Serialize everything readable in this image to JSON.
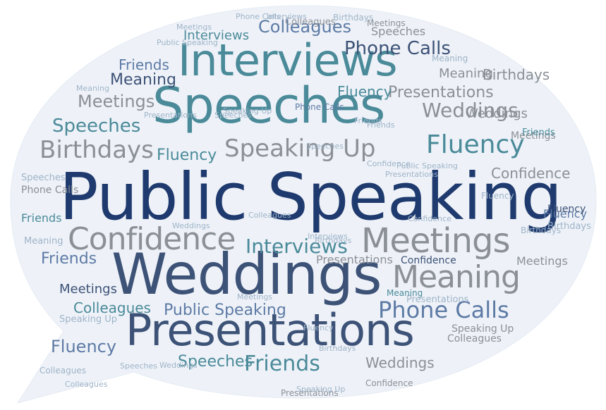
{
  "palette": {
    "navy": "#1f3a6e",
    "slate": "#3d5277",
    "teal": "#4a8a99",
    "steel": "#5d7aa5",
    "gray": "#8b9096",
    "light": "#9eb3c8",
    "bubble": "#eef2f8"
  },
  "words": [
    {
      "text": "Public Speaking",
      "color": "navy"
    },
    {
      "text": "Weddings",
      "color": "slate"
    },
    {
      "text": "Speeches",
      "color": "teal"
    },
    {
      "text": "Interviews",
      "color": "teal"
    },
    {
      "text": "Presentations",
      "color": "slate"
    },
    {
      "text": "Confidence",
      "color": "gray"
    },
    {
      "text": "Meetings",
      "color": "gray"
    },
    {
      "text": "Meaning",
      "color": "gray"
    },
    {
      "text": "Speaking Up",
      "color": "gray"
    },
    {
      "text": "Birthdays",
      "color": "gray"
    },
    {
      "text": "Fluency",
      "color": "teal"
    },
    {
      "text": "Phone Calls",
      "color": "steel"
    },
    {
      "text": "Friends",
      "color": "teal"
    },
    {
      "text": "Weddings",
      "color": "gray"
    },
    {
      "text": "Colleagues",
      "color": "steel"
    },
    {
      "text": "Phone Calls",
      "color": "slate"
    },
    {
      "text": "Presentations",
      "color": "gray"
    },
    {
      "text": "Speeches",
      "color": "teal"
    },
    {
      "text": "Fluency",
      "color": "steel"
    },
    {
      "text": "Confidence",
      "color": "gray"
    },
    {
      "text": "Interviews",
      "color": "teal"
    },
    {
      "text": "Fluency",
      "color": "teal"
    },
    {
      "text": "Meetings",
      "color": "gray"
    },
    {
      "text": "Meaning",
      "color": "slate"
    },
    {
      "text": "Friends",
      "color": "steel"
    },
    {
      "text": "Friends",
      "color": "steel"
    },
    {
      "text": "Birthdays",
      "color": "gray"
    },
    {
      "text": "Colleagues",
      "color": "teal"
    },
    {
      "text": "Public Speaking",
      "color": "steel"
    },
    {
      "text": "Meetings",
      "color": "slate"
    },
    {
      "text": "Fluency",
      "color": "teal"
    },
    {
      "text": "Weddings",
      "color": "gray"
    },
    {
      "text": "Speeches",
      "color": "teal"
    },
    {
      "text": "Interviews",
      "color": "teal"
    },
    {
      "text": "Speeches",
      "color": "gray"
    },
    {
      "text": "Presentations",
      "color": "gray"
    },
    {
      "text": "Meaning",
      "color": "gray"
    },
    {
      "text": "Friends",
      "color": "teal"
    },
    {
      "text": "Fluency",
      "color": "steel"
    },
    {
      "text": "Meetings",
      "color": "gray"
    },
    {
      "text": "Weddings",
      "color": "gray"
    },
    {
      "text": "Speaking Up",
      "color": "gray"
    },
    {
      "text": "Phone Calls",
      "color": "gray"
    },
    {
      "text": "Speeches",
      "color": "light"
    },
    {
      "text": "Colleagues",
      "color": "gray"
    },
    {
      "text": "Meetings",
      "color": "gray"
    },
    {
      "text": "Friends",
      "color": "teal"
    },
    {
      "text": "Birthdays",
      "color": "light"
    },
    {
      "text": "Fluency",
      "color": "slate"
    },
    {
      "text": "Meaning",
      "color": "light"
    },
    {
      "text": "Confidence",
      "color": "slate"
    },
    {
      "text": "Colleagues",
      "color": "gray"
    },
    {
      "text": "Birthdays",
      "color": "light"
    },
    {
      "text": "Presentations",
      "color": "light"
    },
    {
      "text": "Speaking Up",
      "color": "light"
    },
    {
      "text": "Meetings",
      "color": "gray"
    },
    {
      "text": "Meaning",
      "color": "light"
    },
    {
      "text": "Fluency",
      "color": "light"
    },
    {
      "text": "Meaning",
      "color": "teal"
    },
    {
      "text": "Presentations",
      "color": "gray"
    },
    {
      "text": "Confidence",
      "color": "gray"
    },
    {
      "text": "Phone Calls",
      "color": "steel"
    },
    {
      "text": "Birthdays",
      "color": "light"
    },
    {
      "text": "Colleagues",
      "color": "light"
    },
    {
      "text": "Confidence",
      "color": "light"
    },
    {
      "text": "Interviews",
      "color": "light"
    },
    {
      "text": "Meetings",
      "color": "light"
    },
    {
      "text": "Birthdays",
      "color": "light"
    },
    {
      "text": "Speeches",
      "color": "light"
    },
    {
      "text": "Fluency",
      "color": "light"
    },
    {
      "text": "Friends",
      "color": "light"
    },
    {
      "text": "Phone Calls",
      "color": "light"
    },
    {
      "text": "Public Speaking",
      "color": "light"
    },
    {
      "text": "Presentations",
      "color": "light"
    },
    {
      "text": "Speaking Up",
      "color": "light"
    },
    {
      "text": "Weddings",
      "color": "light"
    },
    {
      "text": "Colleagues",
      "color": "light"
    },
    {
      "text": "Meaning",
      "color": "light"
    },
    {
      "text": "Interviews",
      "color": "light"
    },
    {
      "text": "Speeches",
      "color": "light"
    },
    {
      "text": "Confidence",
      "color": "light"
    },
    {
      "text": "Presentations",
      "color": "light"
    },
    {
      "text": "Speaking Up",
      "color": "light"
    },
    {
      "text": "Weddings",
      "color": "light"
    },
    {
      "text": "Meetings",
      "color": "light"
    },
    {
      "text": "Birthdays",
      "color": "light"
    },
    {
      "text": "Colleagues",
      "color": "light"
    },
    {
      "text": "Friends",
      "color": "light"
    },
    {
      "text": "Public Speaking",
      "color": "light"
    },
    {
      "text": "Speeches",
      "color": "light"
    }
  ]
}
